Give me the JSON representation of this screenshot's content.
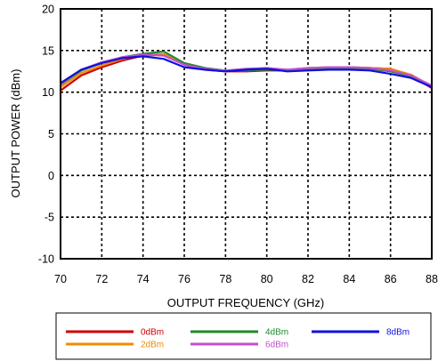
{
  "chart_data": {
    "type": "line",
    "title": "",
    "xlabel": "OUTPUT FREQUENCY (GHz)",
    "ylabel": "OUTPUT POWER (dBm)",
    "xlim": [
      70,
      88
    ],
    "ylim": [
      -10,
      20
    ],
    "xticks": [
      70,
      72,
      74,
      76,
      78,
      80,
      82,
      84,
      86,
      88
    ],
    "yticks": [
      -10,
      -5,
      0,
      5,
      10,
      15,
      20
    ],
    "grid": true,
    "grid_style": "dotted",
    "legend_position": "bottom",
    "series": [
      {
        "name": "0dBm",
        "color": "#cc0000",
        "x": [
          70,
          71,
          72,
          73,
          74,
          75,
          76,
          77,
          78,
          79,
          80,
          81,
          82,
          83,
          84,
          85,
          86,
          87,
          88
        ],
        "y": [
          10.2,
          12.0,
          13.0,
          13.8,
          14.4,
          14.5,
          13.3,
          12.7,
          12.5,
          12.5,
          12.6,
          12.6,
          12.8,
          12.9,
          13.0,
          12.9,
          12.8,
          12.0,
          10.5
        ]
      },
      {
        "name": "2dBm",
        "color": "#f08c00",
        "x": [
          70,
          71,
          72,
          73,
          74,
          75,
          76,
          77,
          78,
          79,
          80,
          81,
          82,
          83,
          84,
          85,
          86,
          87,
          88
        ],
        "y": [
          10.6,
          12.3,
          13.2,
          14.0,
          14.5,
          14.6,
          13.4,
          12.8,
          12.6,
          12.6,
          12.7,
          12.7,
          12.9,
          13.0,
          13.0,
          12.9,
          12.8,
          12.1,
          10.7
        ]
      },
      {
        "name": "4dBm",
        "color": "#1f8a2e",
        "x": [
          70,
          71,
          72,
          73,
          74,
          75,
          76,
          77,
          78,
          79,
          80,
          81,
          82,
          83,
          84,
          85,
          86,
          87,
          88
        ],
        "y": [
          10.9,
          12.6,
          13.5,
          14.2,
          14.6,
          14.9,
          13.5,
          12.9,
          12.6,
          12.6,
          12.7,
          12.6,
          12.8,
          12.9,
          12.9,
          12.8,
          12.5,
          11.9,
          10.7
        ]
      },
      {
        "name": "6dBm",
        "color": "#c050d0",
        "x": [
          70,
          71,
          72,
          73,
          74,
          75,
          76,
          77,
          78,
          79,
          80,
          81,
          82,
          83,
          84,
          85,
          86,
          87,
          88
        ],
        "y": [
          11.0,
          12.7,
          13.6,
          14.2,
          14.5,
          14.4,
          13.3,
          12.8,
          12.6,
          12.8,
          12.9,
          12.7,
          12.9,
          13.0,
          13.0,
          12.9,
          12.6,
          12.0,
          10.8
        ]
      },
      {
        "name": "8dBm",
        "color": "#1010e0",
        "x": [
          70,
          71,
          72,
          73,
          74,
          75,
          76,
          77,
          78,
          79,
          80,
          81,
          82,
          83,
          84,
          85,
          86,
          87,
          88
        ],
        "y": [
          11.1,
          12.7,
          13.5,
          14.1,
          14.3,
          14.0,
          13.0,
          12.7,
          12.5,
          12.7,
          12.8,
          12.5,
          12.6,
          12.7,
          12.7,
          12.6,
          12.2,
          11.7,
          10.6
        ]
      }
    ]
  }
}
